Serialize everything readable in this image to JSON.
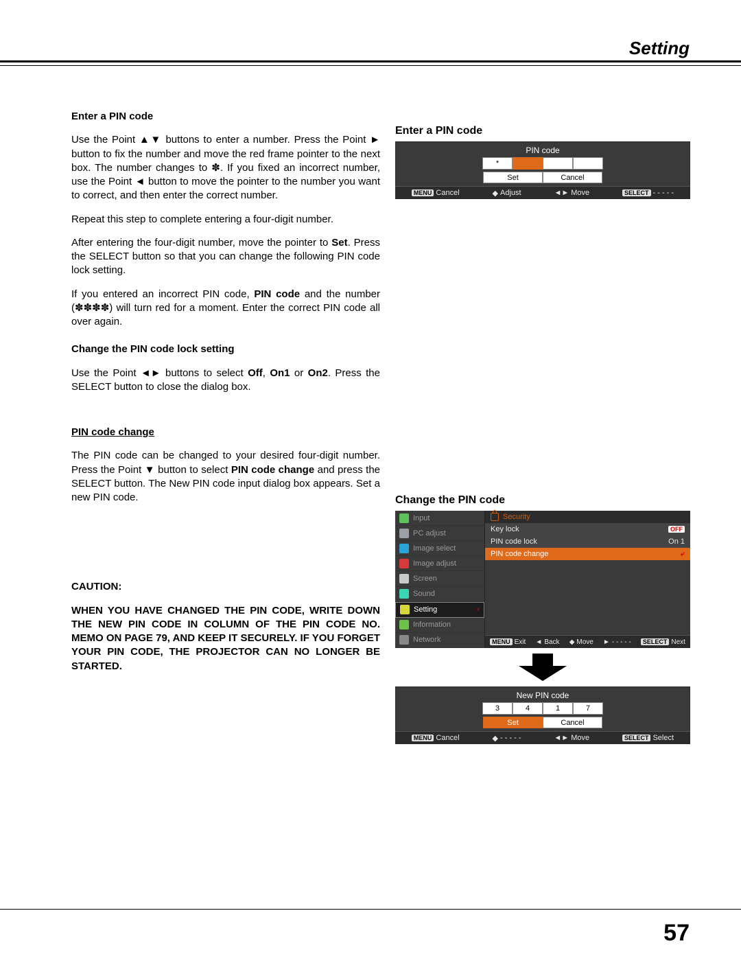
{
  "page": {
    "header": "Setting",
    "number": "57"
  },
  "left": {
    "h1": "Enter a PIN code",
    "p1a": "Use the Point ▲▼  buttons to enter a number. Press the Point ► button to fix the number and move the red frame pointer to the next box. The number changes to ✽. If you fixed an incorrect number, use the Point ◄ button to move the pointer to the number you want to correct, and then enter the correct number.",
    "p1b": "Repeat this step to complete entering a four-digit number.",
    "p1c_a": "After entering the four-digit number, move the pointer to ",
    "p1c_set": "Set",
    "p1c_b": ". Press the SELECT button so that you can change the following PIN code lock setting.",
    "p1d_a": "If you entered an incorrect PIN code, ",
    "p1d_pin": "PIN code",
    "p1d_b": " and the number (✽✽✽✽) will turn red for a moment. Enter the correct PIN code all over again.",
    "h2": "Change the PIN code lock setting",
    "p2_a": "Use the Point ◄► buttons to select ",
    "p2_off": "Off",
    "p2_sep1": ", ",
    "p2_on1": "On1",
    "p2_sep2": " or ",
    "p2_on2": "On2",
    "p2_b": ". Press the SELECT button to close the dialog box.",
    "h3": "PIN code change",
    "p3_a": "The PIN code can be changed to your desired four-digit number. Press the Point ▼ button to select ",
    "p3_pcc": "PIN code change",
    "p3_b": " and press the SELECT button. The New PIN code input dialog box appears. Set a new PIN code.",
    "h4": "CAUTION:",
    "p4": "WHEN YOU HAVE CHANGED THE PIN CODE, WRITE DOWN THE NEW PIN CODE IN COLUMN OF THE PIN CODE NO. MEMO ON PAGE 79, AND KEEP IT SECURELY. IF YOU FORGET YOUR PIN CODE, THE PROJECTOR CAN NO LONGER BE STARTED."
  },
  "right": {
    "cap1": "Enter a PIN code",
    "cap2": "Change the PIN code"
  },
  "osd_pin": {
    "title": "PIN code",
    "cells": [
      {
        "v": "*",
        "sel": false
      },
      {
        "v": "",
        "sel": true
      },
      {
        "v": "",
        "sel": false
      },
      {
        "v": "",
        "sel": false
      }
    ],
    "btns": [
      {
        "v": "Set",
        "sel": false
      },
      {
        "v": "Cancel",
        "sel": false
      }
    ],
    "help": {
      "menu": "MENU",
      "cancel": "Cancel",
      "adjust": "Adjust",
      "move": "Move",
      "select": "SELECT",
      "dashes": "- - - - -"
    },
    "colors": {
      "bg": "#3a3a3a",
      "sel": "#e06a1c"
    }
  },
  "osd_menu": {
    "left_items": [
      {
        "label": "Input",
        "color": "#5cc25c"
      },
      {
        "label": "PC adjust",
        "color": "#9aa0a6"
      },
      {
        "label": "Image select",
        "color": "#2aa3d6"
      },
      {
        "label": "Image adjust",
        "color": "#d63a3a"
      },
      {
        "label": "Screen",
        "color": "#c9c9c9"
      },
      {
        "label": "Sound",
        "color": "#3ad6b4"
      },
      {
        "label": "Setting",
        "color": "#d6d63a",
        "active": true
      },
      {
        "label": "Information",
        "color": "#6cc24a"
      },
      {
        "label": "Network",
        "color": "#888888"
      }
    ],
    "right_header": "Security",
    "right_rows": [
      {
        "label": "Key lock",
        "value_icon": "chip",
        "value": "OFF",
        "sel": false
      },
      {
        "label": "PIN code lock",
        "value": "On 1",
        "sel": false
      },
      {
        "label": "PIN code change",
        "value_icon": "enter",
        "value": "",
        "sel": true
      }
    ],
    "help": {
      "menu": "MENU",
      "exit": "Exit",
      "back": "Back",
      "move": "Move",
      "dashes": "- - - - -",
      "select": "SELECT",
      "next": "Next"
    }
  },
  "osd_newpin": {
    "title": "New PIN code",
    "cells": [
      {
        "v": "3",
        "sel": false
      },
      {
        "v": "4",
        "sel": false
      },
      {
        "v": "1",
        "sel": false
      },
      {
        "v": "7",
        "sel": false
      }
    ],
    "btns": [
      {
        "v": "Set",
        "sel": true
      },
      {
        "v": "Cancel",
        "sel": false
      }
    ],
    "help": {
      "menu": "MENU",
      "cancel": "Cancel",
      "dashes": "- - - - -",
      "move": "Move",
      "select": "SELECT",
      "selectlbl": "Select"
    }
  }
}
